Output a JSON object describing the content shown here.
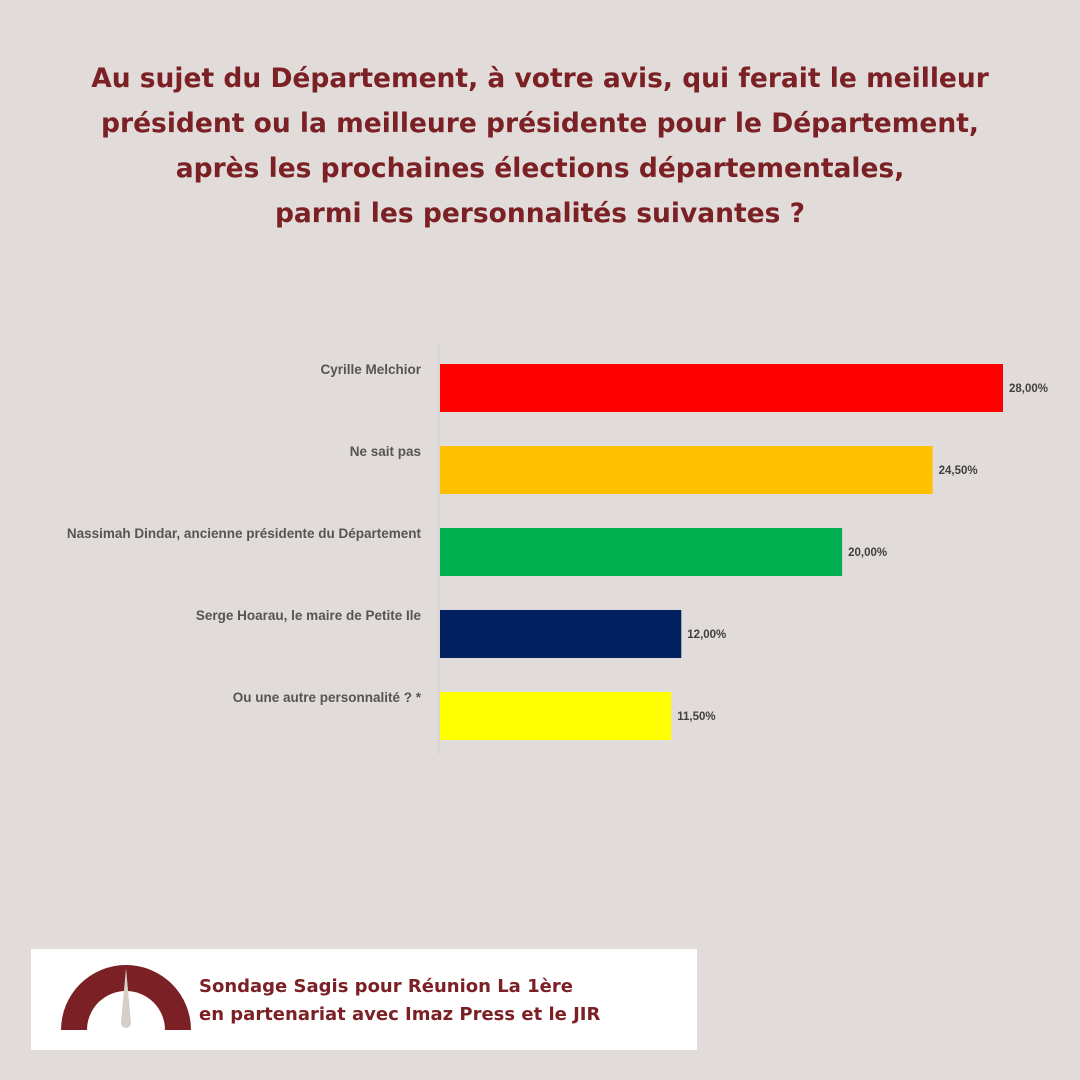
{
  "title_lines": [
    "Au sujet du Département, à votre avis, qui ferait le meilleur",
    "président ou la meilleure présidente pour le Département,",
    "après les prochaines élections départementales,",
    "parmi les personnalités suivantes ?"
  ],
  "colors": {
    "background": "#e1dcd9",
    "title": "#7b2024",
    "brand": "#7b2024"
  },
  "chart_data": {
    "type": "bar",
    "orientation": "horizontal",
    "categories": [
      "Cyrille Melchior",
      "Ne sait pas",
      "Nassimah Dindar, ancienne présidente du Département",
      "Serge Hoarau, le maire de Petite Ile",
      "Ou une autre personnalité ? *"
    ],
    "values": [
      28.0,
      24.5,
      20.0,
      12.0,
      11.5
    ],
    "value_labels": [
      "28,00%",
      "24,50%",
      "20,00%",
      "12,00%",
      "11,50%"
    ],
    "bar_colors": [
      "#ff0000",
      "#ffc000",
      "#00b050",
      "#002060",
      "#ffff00"
    ],
    "xlim": [
      0,
      28
    ],
    "grid": false,
    "legend": "none",
    "title": "",
    "xlabel": "",
    "ylabel": ""
  },
  "footer": {
    "line1": "Sondage Sagis pour Réunion La 1ère",
    "line2": "en partenariat avec Imaz Press et le JIR",
    "logo_icon": "gauge-icon"
  }
}
